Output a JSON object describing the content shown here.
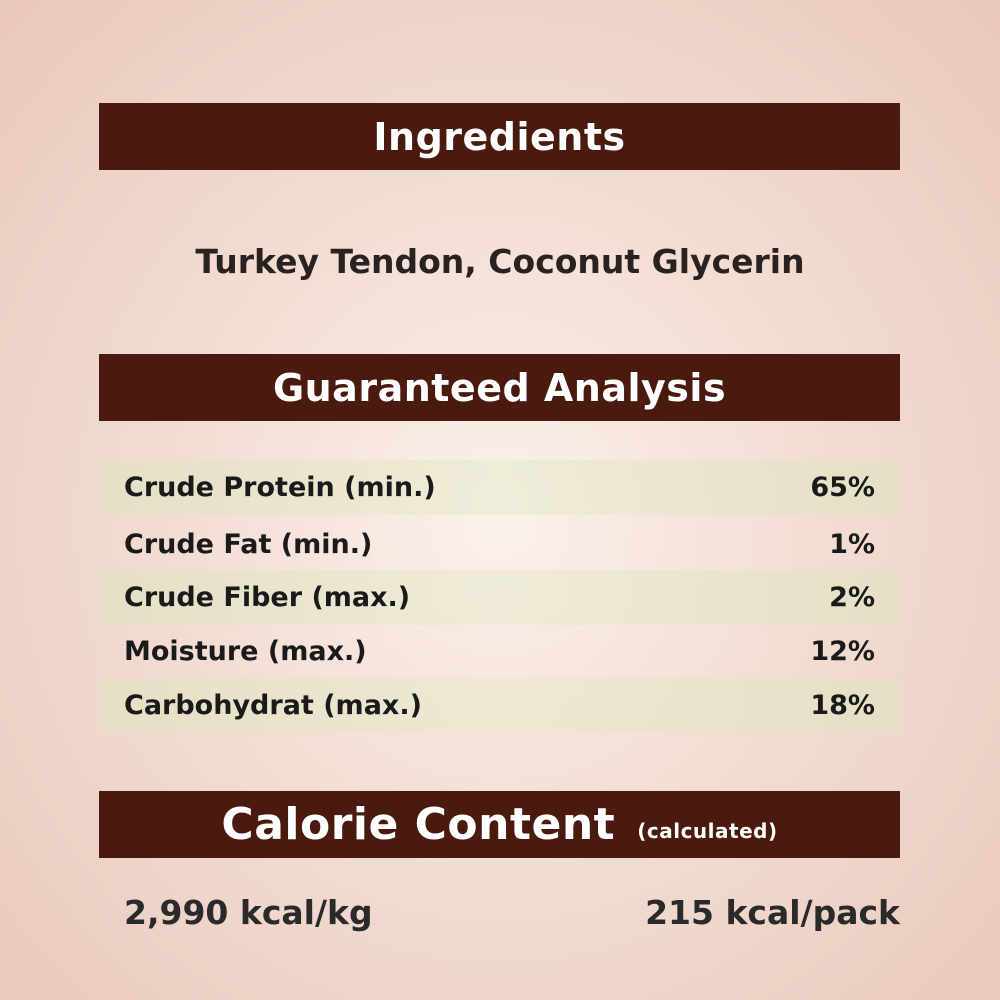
{
  "ingredients": {
    "title": "Ingredients",
    "text": "Turkey Tendon, Coconut Glycerin"
  },
  "analysis": {
    "title": "Guaranteed Analysis",
    "rows": [
      {
        "label": "Crude Protein (min.)",
        "value": "65%"
      },
      {
        "label": "Crude Fat (min.)",
        "value": "1%"
      },
      {
        "label": "Crude Fiber (max.)",
        "value": "2%"
      },
      {
        "label": "Moisture (max.)",
        "value": "12%"
      },
      {
        "label": "Carbohydrat (max.)",
        "value": "18%"
      }
    ]
  },
  "calorie": {
    "title": "Calorie Content",
    "subtitle": "(calculated)",
    "per_kg": "2,990 kcal/kg",
    "per_pack": "215 kcal/pack"
  },
  "colors": {
    "banner": "#4a1a0e",
    "row_shade": "#e2e2c4"
  }
}
